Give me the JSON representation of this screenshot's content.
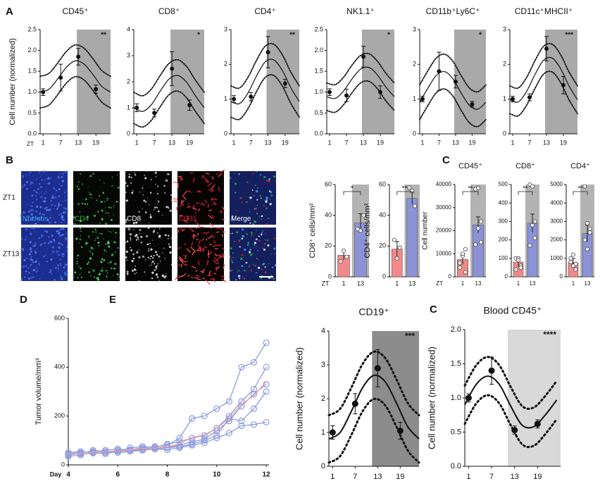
{
  "panel_labels": [
    "A",
    "B",
    "C",
    "D",
    "E",
    "C"
  ],
  "panel_b": {
    "rows": [
      "ZT1",
      "ZT13"
    ],
    "channels": [
      "Nucleus",
      "CD4",
      "CD8",
      "CD31",
      "Merge"
    ]
  },
  "chart_data": [
    {
      "type": "rhythm",
      "title": "CD45⁺",
      "ylabel": "Cell number (normalized)",
      "xlabel": "ZT",
      "xlim": [
        0,
        24
      ],
      "ylim": [
        0,
        2.5
      ],
      "xticks": [
        1,
        7,
        13,
        19
      ],
      "yticks": [
        {
          "value": 0,
          "label": "0.0"
        },
        0.5,
        {
          "value": 1,
          "label": "1.0"
        },
        1.5,
        {
          "value": 2,
          "label": "2.0"
        },
        2.5
      ],
      "shade": [
        12.5,
        24
      ],
      "shade_color": "#a9a9a9",
      "annotation": "**",
      "points": {
        "x": [
          1,
          7,
          13,
          19
        ],
        "values": [
          1.0,
          1.35,
          1.85,
          1.07
        ],
        "errors": [
          0.08,
          0.32,
          0.2,
          0.1
        ]
      },
      "fit": {
        "x": [
          0,
          3,
          6,
          9,
          12,
          15,
          18,
          21,
          24
        ],
        "values": [
          1.0,
          1.07,
          1.32,
          1.6,
          1.75,
          1.67,
          1.42,
          1.14,
          1.0
        ],
        "upper": [
          1.38,
          1.45,
          1.7,
          1.98,
          2.13,
          2.05,
          1.8,
          1.52,
          1.38
        ],
        "lower": [
          0.62,
          0.69,
          0.94,
          1.22,
          1.37,
          1.29,
          1.04,
          0.76,
          0.62
        ]
      }
    },
    {
      "type": "rhythm",
      "title": "CD8⁺",
      "xlim": [
        0,
        24
      ],
      "ylim": [
        0,
        4
      ],
      "xticks": [
        1,
        7,
        13,
        19
      ],
      "yticks": [
        0,
        1,
        2,
        3,
        4
      ],
      "shade": [
        12.5,
        24
      ],
      "shade_color": "#a9a9a9",
      "annotation": "*",
      "points": {
        "x": [
          1,
          7,
          13,
          19
        ],
        "values": [
          1.0,
          0.8,
          2.5,
          1.1
        ],
        "errors": [
          0.15,
          0.15,
          0.65,
          0.2
        ]
      },
      "fit": {
        "x": [
          0,
          3,
          6,
          9,
          12,
          15,
          18,
          21,
          24
        ],
        "values": [
          1.0,
          0.86,
          1.12,
          1.64,
          2.1,
          2.24,
          1.98,
          1.46,
          1.0
        ],
        "upper": [
          1.6,
          1.46,
          1.72,
          2.24,
          2.7,
          2.84,
          2.58,
          2.06,
          1.6
        ],
        "lower": [
          0.4,
          0.26,
          0.52,
          1.04,
          1.5,
          1.64,
          1.38,
          0.86,
          0.4
        ]
      }
    },
    {
      "type": "rhythm",
      "title": "CD4⁺",
      "xlim": [
        0,
        24
      ],
      "ylim": [
        0,
        3
      ],
      "xticks": [
        1,
        7,
        13,
        19
      ],
      "yticks": [
        0,
        1,
        2,
        3
      ],
      "shade": [
        12.5,
        24
      ],
      "shade_color": "#a9a9a9",
      "annotation": "**",
      "points": {
        "x": [
          1,
          7,
          13,
          19
        ],
        "values": [
          1.0,
          1.07,
          2.35,
          1.45
        ],
        "errors": [
          0.1,
          0.12,
          0.45,
          0.12
        ]
      },
      "fit": {
        "x": [
          0,
          3,
          6,
          9,
          12,
          15,
          18,
          21,
          24
        ],
        "values": [
          0.93,
          0.87,
          1.18,
          1.67,
          2.07,
          2.13,
          1.83,
          1.33,
          0.93
        ],
        "upper": [
          1.38,
          1.32,
          1.63,
          2.12,
          2.52,
          2.58,
          2.28,
          1.78,
          1.38
        ],
        "lower": [
          0.48,
          0.42,
          0.73,
          1.22,
          1.62,
          1.68,
          1.38,
          0.88,
          0.48
        ]
      }
    },
    {
      "type": "rhythm",
      "title": "NK1.1⁺",
      "xlim": [
        0,
        24
      ],
      "ylim": [
        0,
        2.5
      ],
      "xticks": [
        1,
        7,
        13,
        19
      ],
      "yticks": [
        {
          "value": 0,
          "label": "0.0"
        },
        0.5,
        {
          "value": 1,
          "label": "1.0"
        },
        1.5,
        {
          "value": 2,
          "label": "2.0"
        },
        2.5
      ],
      "shade": [
        12.5,
        24
      ],
      "shade_color": "#a9a9a9",
      "annotation": "*",
      "points": {
        "x": [
          1,
          7,
          13,
          19
        ],
        "values": [
          1.0,
          0.92,
          1.85,
          1.0
        ],
        "errors": [
          0.08,
          0.15,
          0.25,
          0.15
        ]
      },
      "fit": {
        "x": [
          0,
          3,
          6,
          9,
          12,
          15,
          18,
          21,
          24
        ],
        "values": [
          0.89,
          0.85,
          1.03,
          1.32,
          1.55,
          1.59,
          1.41,
          1.12,
          0.89
        ],
        "upper": [
          1.22,
          1.18,
          1.36,
          1.65,
          1.88,
          1.92,
          1.74,
          1.45,
          1.22
        ],
        "lower": [
          0.56,
          0.52,
          0.7,
          0.99,
          1.22,
          1.26,
          1.08,
          0.79,
          0.56
        ]
      }
    },
    {
      "type": "rhythm",
      "title": "CD11b⁺Ly6C⁺",
      "xlim": [
        0,
        24
      ],
      "ylim": [
        0,
        3
      ],
      "xticks": [
        1,
        7,
        13,
        19
      ],
      "yticks": [
        0,
        1,
        2,
        3
      ],
      "shade": [
        12.5,
        24
      ],
      "shade_color": "#a9a9a9",
      "annotation": "*",
      "points": {
        "x": [
          1,
          7,
          13,
          19
        ],
        "values": [
          1.0,
          1.8,
          1.5,
          0.85
        ],
        "errors": [
          0.08,
          0.55,
          0.18,
          0.08
        ]
      },
      "fit": {
        "x": [
          0,
          3,
          6,
          9,
          12,
          15,
          18,
          21,
          24
        ],
        "values": [
          0.91,
          1.32,
          1.68,
          1.79,
          1.59,
          1.18,
          0.82,
          0.71,
          0.91
        ],
        "upper": [
          1.41,
          1.82,
          2.18,
          2.29,
          2.09,
          1.68,
          1.32,
          1.21,
          1.41
        ],
        "lower": [
          0.41,
          0.82,
          1.18,
          1.29,
          1.09,
          0.68,
          0.32,
          0.21,
          0.41
        ]
      }
    },
    {
      "type": "rhythm",
      "title": "CD11c⁺MHCII⁺",
      "xlim": [
        0,
        24
      ],
      "ylim": [
        0,
        3
      ],
      "xticks": [
        1,
        7,
        13,
        19
      ],
      "yticks": [
        0,
        1,
        2,
        3
      ],
      "shade": [
        12.5,
        24
      ],
      "shade_color": "#a9a9a9",
      "annotation": "***",
      "points": {
        "x": [
          1,
          7,
          13,
          19
        ],
        "values": [
          1.0,
          1.05,
          2.45,
          1.4
        ],
        "errors": [
          0.08,
          0.1,
          0.35,
          0.25
        ]
      },
      "fit": {
        "x": [
          0,
          3,
          6,
          9,
          12,
          15,
          18,
          21,
          24
        ],
        "values": [
          0.98,
          0.92,
          1.23,
          1.72,
          2.12,
          2.18,
          1.88,
          1.38,
          0.98
        ],
        "upper": [
          1.38,
          1.32,
          1.63,
          2.12,
          2.52,
          2.58,
          2.28,
          1.78,
          1.38
        ],
        "lower": [
          0.58,
          0.52,
          0.83,
          1.32,
          1.72,
          1.78,
          1.48,
          0.98,
          0.58
        ]
      }
    },
    {
      "type": "bar",
      "ylabel": "CD8⁺ cells/mm²",
      "xlabel": "ZT",
      "categories": [
        "1",
        "13"
      ],
      "values": [
        14,
        35
      ],
      "errors": [
        3,
        6
      ],
      "colors": [
        "#f08a8a",
        "#8b93d6"
      ],
      "ylim": [
        0,
        60
      ],
      "yticks": [
        0,
        20,
        40,
        60
      ],
      "shade_color": "#b3b3b3",
      "annotation": "*",
      "points": [
        [
          10,
          17,
          13
        ],
        [
          31,
          30,
          40
        ]
      ]
    },
    {
      "type": "bar",
      "ylabel": "CD4⁺ cells/mm²",
      "categories": [
        "1",
        "13"
      ],
      "values": [
        18,
        51
      ],
      "errors": [
        5,
        4
      ],
      "colors": [
        "#f08a8a",
        "#8b93d6"
      ],
      "ylim": [
        0,
        60
      ],
      "yticks": [
        0,
        20,
        40,
        60
      ],
      "shade_color": "#b3b3b3",
      "annotation": "**",
      "points": [
        [
          24,
          12,
          19
        ],
        [
          58,
          56,
          46
        ]
      ]
    },
    {
      "type": "bar",
      "title": "CD45⁺",
      "ylabel": "Cell number",
      "xlabel": "ZT",
      "categories": [
        "1",
        "13"
      ],
      "values": [
        7500,
        22500
      ],
      "errors": [
        2200,
        3500
      ],
      "colors": [
        "#f08a8a",
        "#8b93d6"
      ],
      "ylim": [
        0,
        40000
      ],
      "yticks": [
        0,
        10000,
        20000,
        30000,
        40000
      ],
      "shade_color": "#b3b3b3",
      "annotation": "**",
      "points": [
        [
          4000,
          9000,
          2000,
          6000,
          10000,
          12000
        ],
        [
          38000,
          38500,
          24000,
          14000,
          21000,
          15000
        ]
      ]
    },
    {
      "type": "bar",
      "title": "CD8⁺",
      "categories": [
        "1",
        "13"
      ],
      "values": [
        80,
        290
      ],
      "errors": [
        25,
        50
      ],
      "colors": [
        "#f08a8a",
        "#8b93d6"
      ],
      "ylim": [
        0,
        500
      ],
      "yticks": [
        0,
        100,
        200,
        300,
        400,
        500
      ],
      "shade_color": "#b3b3b3",
      "annotation": "**",
      "points": [
        [
          100,
          100,
          60,
          40,
          90,
          50
        ],
        [
          500,
          490,
          210,
          170,
          280,
          300
        ]
      ]
    },
    {
      "type": "bar",
      "title": "CD4⁺",
      "categories": [
        "1",
        "13"
      ],
      "values": [
        750,
        2350
      ],
      "errors": [
        250,
        450
      ],
      "colors": [
        "#f08a8a",
        "#8b93d6"
      ],
      "ylim": [
        0,
        5000
      ],
      "yticks": [
        0,
        1000,
        2000,
        3000,
        4000,
        5000
      ],
      "shade_color": "#b3b3b3",
      "annotation": "**",
      "points": [
        [
          1000,
          1200,
          400,
          800,
          600,
          700
        ],
        [
          4900,
          2900,
          2600,
          2000,
          1500,
          2400
        ]
      ]
    },
    {
      "type": "line",
      "ylabel": "Tumor volume/mm³",
      "xlabel": "Day",
      "xlim": [
        4,
        12
      ],
      "ylim": [
        0,
        600
      ],
      "xticks": [
        4,
        6,
        8,
        10,
        12
      ],
      "yticks": [
        0,
        200,
        400,
        600
      ],
      "x": [
        4,
        4.5,
        5,
        5.5,
        6,
        6.5,
        7,
        7.5,
        8,
        8.5,
        9,
        9.5,
        10,
        10.5,
        11,
        11.5,
        12
      ],
      "series": [
        {
          "color": "#8d9be0",
          "marker": "circle",
          "values": [
            40,
            48,
            55,
            50,
            60,
            62,
            70,
            75,
            80,
            110,
            190,
            200,
            230,
            260,
            400,
            420,
            500
          ]
        },
        {
          "color": "#8d9be0",
          "marker": "circle",
          "values": [
            45,
            45,
            60,
            55,
            55,
            70,
            75,
            72,
            85,
            95,
            110,
            120,
            150,
            200,
            260,
            310,
            400
          ]
        },
        {
          "color": "#8d9be0",
          "marker": "circle",
          "values": [
            50,
            55,
            48,
            60,
            65,
            60,
            65,
            70,
            72,
            80,
            95,
            105,
            140,
            180,
            240,
            290,
            330
          ]
        },
        {
          "color": "#8d9be0",
          "marker": "circle",
          "values": [
            35,
            40,
            50,
            45,
            55,
            60,
            62,
            65,
            70,
            75,
            85,
            100,
            120,
            190,
            180,
            230,
            300
          ]
        },
        {
          "color": "#8d9be0",
          "marker": "circle",
          "values": [
            45,
            50,
            52,
            55,
            50,
            55,
            60,
            65,
            62,
            70,
            80,
            90,
            110,
            130,
            160,
            165,
            175
          ]
        },
        {
          "color": "#f29b9b",
          "marker": "none",
          "values": [
            43,
            48,
            53,
            53,
            57,
            62,
            66,
            69,
            74,
            86,
            112,
            123,
            150,
            190,
            248,
            283,
            341
          ]
        }
      ]
    },
    {
      "type": "rhythm",
      "title": "CD19⁺",
      "ylabel": "Cell number (normalized)",
      "xlim": [
        0,
        24
      ],
      "ylim": [
        0,
        4
      ],
      "xticks": [
        1,
        7,
        13,
        19
      ],
      "yticks": [
        0,
        1,
        2,
        3,
        4
      ],
      "shade": [
        11.5,
        24
      ],
      "shade_color": "#8c8c8c",
      "annotation": "***",
      "points": {
        "x": [
          1,
          7,
          13,
          19
        ],
        "values": [
          1.0,
          1.85,
          2.9,
          1.05
        ],
        "errors": [
          0.2,
          0.3,
          0.55,
          0.25
        ]
      },
      "fit": {
        "x": [
          0,
          3,
          6,
          9,
          12,
          15,
          18,
          21,
          24
        ],
        "values": [
          0.81,
          1.0,
          1.63,
          2.33,
          2.69,
          2.5,
          1.87,
          1.17,
          0.81
        ],
        "upper": [
          1.51,
          1.7,
          2.33,
          3.03,
          3.39,
          3.2,
          2.57,
          1.87,
          1.51
        ],
        "lower": [
          0.11,
          0.3,
          0.93,
          1.63,
          1.99,
          1.8,
          1.17,
          0.47,
          0.11
        ]
      }
    },
    {
      "type": "rhythm",
      "title": "Blood CD45⁺",
      "ylabel": "Cell number (normalized)",
      "xlim": [
        0,
        25
      ],
      "ylim": [
        0,
        2
      ],
      "xticks": [
        1,
        7,
        13,
        19
      ],
      "yticks": [
        {
          "value": 0,
          "label": "0.0"
        },
        0.5,
        {
          "value": 1,
          "label": "1.0"
        },
        1.5,
        {
          "value": 2,
          "label": "2.0"
        }
      ],
      "shade": [
        11.2,
        25
      ],
      "shade_color": "#d9d9d9",
      "annotation": "****",
      "points": {
        "x": [
          1,
          7,
          13,
          19
        ],
        "values": [
          1.0,
          1.4,
          0.53,
          0.62
        ],
        "errors": [
          0.06,
          0.2,
          0.06,
          0.06
        ]
      },
      "fit": {
        "x": [
          0,
          3,
          6,
          9,
          12,
          15,
          18,
          21,
          24
        ],
        "values": [
          0.9,
          1.2,
          1.32,
          1.2,
          0.88,
          0.6,
          0.58,
          0.75,
          0.97
        ],
        "upper": [
          1.18,
          1.48,
          1.6,
          1.48,
          1.16,
          0.88,
          0.86,
          1.03,
          1.25
        ],
        "lower": [
          0.62,
          0.92,
          1.04,
          0.92,
          0.6,
          0.32,
          0.3,
          0.47,
          0.69
        ]
      }
    }
  ]
}
